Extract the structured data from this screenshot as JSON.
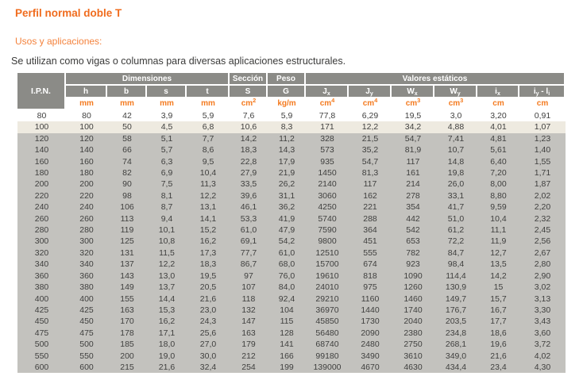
{
  "page": {
    "title": "Perfil normal doble T",
    "subtitle": "Usos y aplicaciones:",
    "description": "Se utilizan como vigas o columnas para diversas aplicaciones estructurales."
  },
  "colors": {
    "accent_orange": "#f06c1e",
    "units_orange": "#f47b20",
    "header_gray": "#8b8b87",
    "row_gray": "#c3c2be",
    "row_beige": "#eeeae0",
    "text_dark": "#3a3a39"
  },
  "table": {
    "corner_label": "I.P.N.",
    "groups": {
      "dimensions": "Dimensiones",
      "section": "Sección",
      "weight": "Peso",
      "static_values": "Valores estáticos"
    },
    "columns": [
      {
        "key": "h",
        "head": [
          [
            "h",
            ""
          ]
        ],
        "unit": [
          "mm",
          ""
        ]
      },
      {
        "key": "b",
        "head": [
          [
            "b",
            ""
          ]
        ],
        "unit": [
          "mm",
          ""
        ]
      },
      {
        "key": "s",
        "head": [
          [
            "s",
            ""
          ]
        ],
        "unit": [
          "mm",
          ""
        ]
      },
      {
        "key": "t",
        "head": [
          [
            "t",
            ""
          ]
        ],
        "unit": [
          "mm",
          ""
        ]
      },
      {
        "key": "S",
        "head": [
          [
            "S",
            ""
          ]
        ],
        "unit": [
          "cm",
          "2"
        ]
      },
      {
        "key": "G",
        "head": [
          [
            "G",
            ""
          ]
        ],
        "unit": [
          "kg/m",
          ""
        ]
      },
      {
        "key": "Jx",
        "head": [
          [
            "J",
            "x"
          ]
        ],
        "unit": [
          "cm",
          "4"
        ]
      },
      {
        "key": "Jy",
        "head": [
          [
            "J",
            "y"
          ]
        ],
        "unit": [
          "cm",
          "4"
        ]
      },
      {
        "key": "Wx",
        "head": [
          [
            "W",
            "x"
          ]
        ],
        "unit": [
          "cm",
          "3"
        ]
      },
      {
        "key": "Wy",
        "head": [
          [
            "W",
            "y"
          ]
        ],
        "unit": [
          "cm",
          "3"
        ]
      },
      {
        "key": "ix",
        "head": [
          [
            "i",
            "x"
          ]
        ],
        "unit": [
          "cm",
          ""
        ]
      },
      {
        "key": "iy-li",
        "head": [
          [
            "i",
            "y"
          ],
          [
            " - ",
            ""
          ],
          [
            "l",
            "i"
          ]
        ],
        "unit": [
          "cm",
          ""
        ]
      }
    ],
    "rows": [
      [
        "80",
        "80",
        "42",
        "3,9",
        "5,9",
        "7,6",
        "5,9",
        "77,8",
        "6,29",
        "19,5",
        "3,0",
        "3,20",
        "0,91"
      ],
      [
        "100",
        "100",
        "50",
        "4,5",
        "6,8",
        "10,6",
        "8,3",
        "171",
        "12,2",
        "34,2",
        "4,88",
        "4,01",
        "1,07"
      ],
      [
        "120",
        "120",
        "58",
        "5,1",
        "7,7",
        "14,2",
        "11,2",
        "328",
        "21,5",
        "54,7",
        "7,41",
        "4,81",
        "1,23"
      ],
      [
        "140",
        "140",
        "66",
        "5,7",
        "8,6",
        "18,3",
        "14,3",
        "573",
        "35,2",
        "81,9",
        "10,7",
        "5,61",
        "1,40"
      ],
      [
        "160",
        "160",
        "74",
        "6,3",
        "9,5",
        "22,8",
        "17,9",
        "935",
        "54,7",
        "117",
        "14,8",
        "6,40",
        "1,55"
      ],
      [
        "180",
        "180",
        "82",
        "6,9",
        "10,4",
        "27,9",
        "21,9",
        "1450",
        "81,3",
        "161",
        "19,8",
        "7,20",
        "1,71"
      ],
      [
        "200",
        "200",
        "90",
        "7,5",
        "11,3",
        "33,5",
        "26,2",
        "2140",
        "117",
        "214",
        "26,0",
        "8,00",
        "1,87"
      ],
      [
        "220",
        "220",
        "98",
        "8,1",
        "12,2",
        "39,6",
        "31,1",
        "3060",
        "162",
        "278",
        "33,1",
        "8,80",
        "2,02"
      ],
      [
        "240",
        "240",
        "106",
        "8,7",
        "13,1",
        "46,1",
        "36,2",
        "4250",
        "221",
        "354",
        "41,7",
        "9,59",
        "2,20"
      ],
      [
        "260",
        "260",
        "113",
        "9,4",
        "14,1",
        "53,3",
        "41,9",
        "5740",
        "288",
        "442",
        "51,0",
        "10,4",
        "2,32"
      ],
      [
        "280",
        "280",
        "119",
        "10,1",
        "15,2",
        "61,0",
        "47,9",
        "7590",
        "364",
        "542",
        "61,2",
        "11,1",
        "2,45"
      ],
      [
        "300",
        "300",
        "125",
        "10,8",
        "16,2",
        "69,1",
        "54,2",
        "9800",
        "451",
        "653",
        "72,2",
        "11,9",
        "2,56"
      ],
      [
        "320",
        "320",
        "131",
        "11,5",
        "17,3",
        "77,7",
        "61,0",
        "12510",
        "555",
        "782",
        "84,7",
        "12,7",
        "2,67"
      ],
      [
        "340",
        "340",
        "137",
        "12,2",
        "18,3",
        "86,7",
        "68,0",
        "15700",
        "674",
        "923",
        "98,4",
        "13,5",
        "2,80"
      ],
      [
        "360",
        "360",
        "143",
        "13,0",
        "19,5",
        "97",
        "76,0",
        "19610",
        "818",
        "1090",
        "114,4",
        "14,2",
        "2,90"
      ],
      [
        "380",
        "380",
        "149",
        "13,7",
        "20,5",
        "107",
        "84,0",
        "24010",
        "975",
        "1260",
        "130,9",
        "15",
        "3,02"
      ],
      [
        "400",
        "400",
        "155",
        "14,4",
        "21,6",
        "118",
        "92,4",
        "29210",
        "1160",
        "1460",
        "149,7",
        "15,7",
        "3,13"
      ],
      [
        "425",
        "425",
        "163",
        "15,3",
        "23,0",
        "132",
        "104",
        "36970",
        "1440",
        "1740",
        "176,7",
        "16,7",
        "3,30"
      ],
      [
        "450",
        "450",
        "170",
        "16,2",
        "24,3",
        "147",
        "115",
        "45850",
        "1730",
        "2040",
        "203,5",
        "17,7",
        "3,43"
      ],
      [
        "475",
        "475",
        "178",
        "17,1",
        "25,6",
        "163",
        "128",
        "56480",
        "2090",
        "2380",
        "234,8",
        "18,6",
        "3,60"
      ],
      [
        "500",
        "500",
        "185",
        "18,0",
        "27,0",
        "179",
        "141",
        "68740",
        "2480",
        "2750",
        "268,1",
        "19,6",
        "3,72"
      ],
      [
        "550",
        "550",
        "200",
        "19,0",
        "30,0",
        "212",
        "166",
        "99180",
        "3490",
        "3610",
        "349,0",
        "21,6",
        "4,02"
      ],
      [
        "600",
        "600",
        "215",
        "21,6",
        "32,4",
        "254",
        "199",
        "139000",
        "4670",
        "4630",
        "434,4",
        "23,4",
        "4,30"
      ]
    ]
  }
}
